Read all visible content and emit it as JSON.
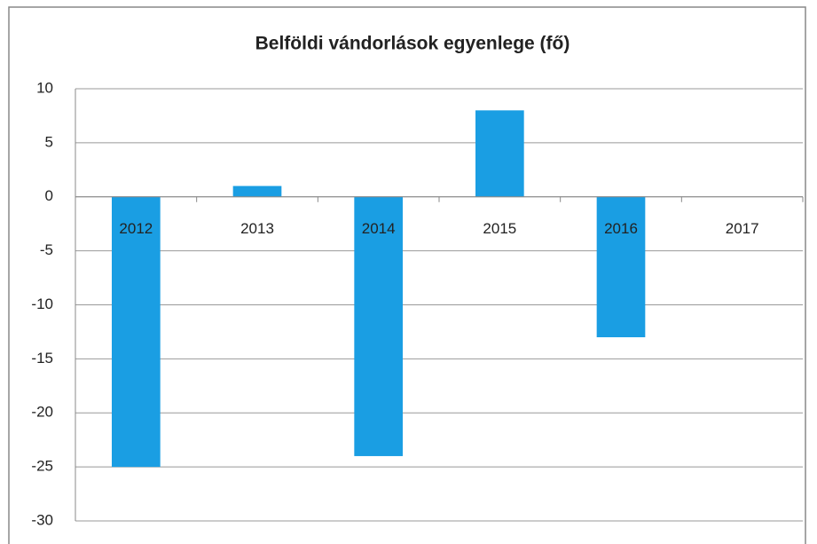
{
  "chart_data": {
    "type": "bar",
    "title": "Belföldi vándorlások egyenlege (fő)",
    "categories": [
      "2012",
      "2013",
      "2014",
      "2015",
      "2016",
      "2017"
    ],
    "values": [
      -25,
      1,
      -24,
      8,
      -13,
      0
    ],
    "color": "#1a9ee3",
    "ylim": [
      -30,
      10
    ],
    "yticks": [
      -30,
      -25,
      -20,
      -15,
      -10,
      -5,
      0,
      5,
      10
    ],
    "grid": true
  }
}
